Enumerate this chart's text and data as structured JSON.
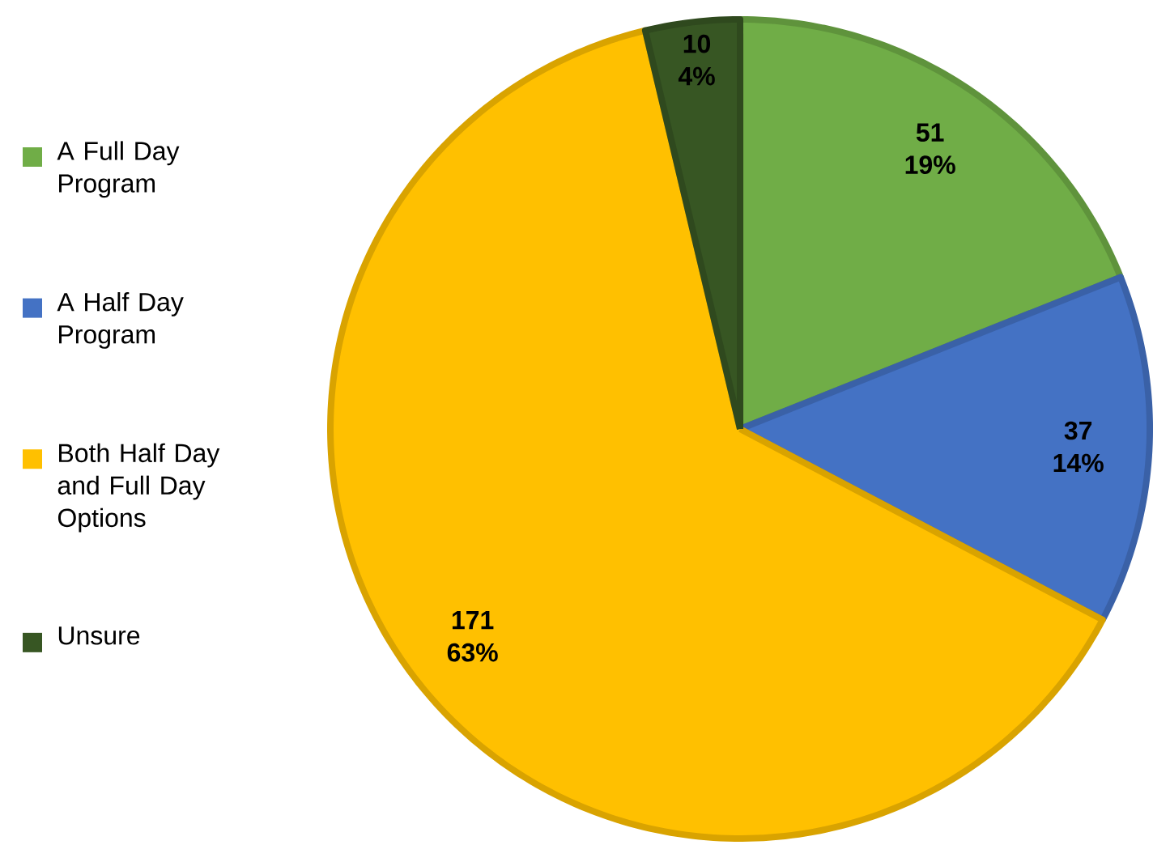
{
  "chart_data": {
    "type": "pie",
    "categories": [
      "A Full Day Program",
      "A Half Day Program",
      "Both Half Day and Full Day Options",
      "Unsure"
    ],
    "values": [
      51,
      37,
      171,
      10
    ],
    "colors": [
      "#70ad47",
      "#4472c4",
      "#ffc000",
      "#375623"
    ],
    "value_labels": [
      "51 19%",
      "37 14%",
      "171 63%",
      "10 4%"
    ],
    "legend": "left"
  }
}
